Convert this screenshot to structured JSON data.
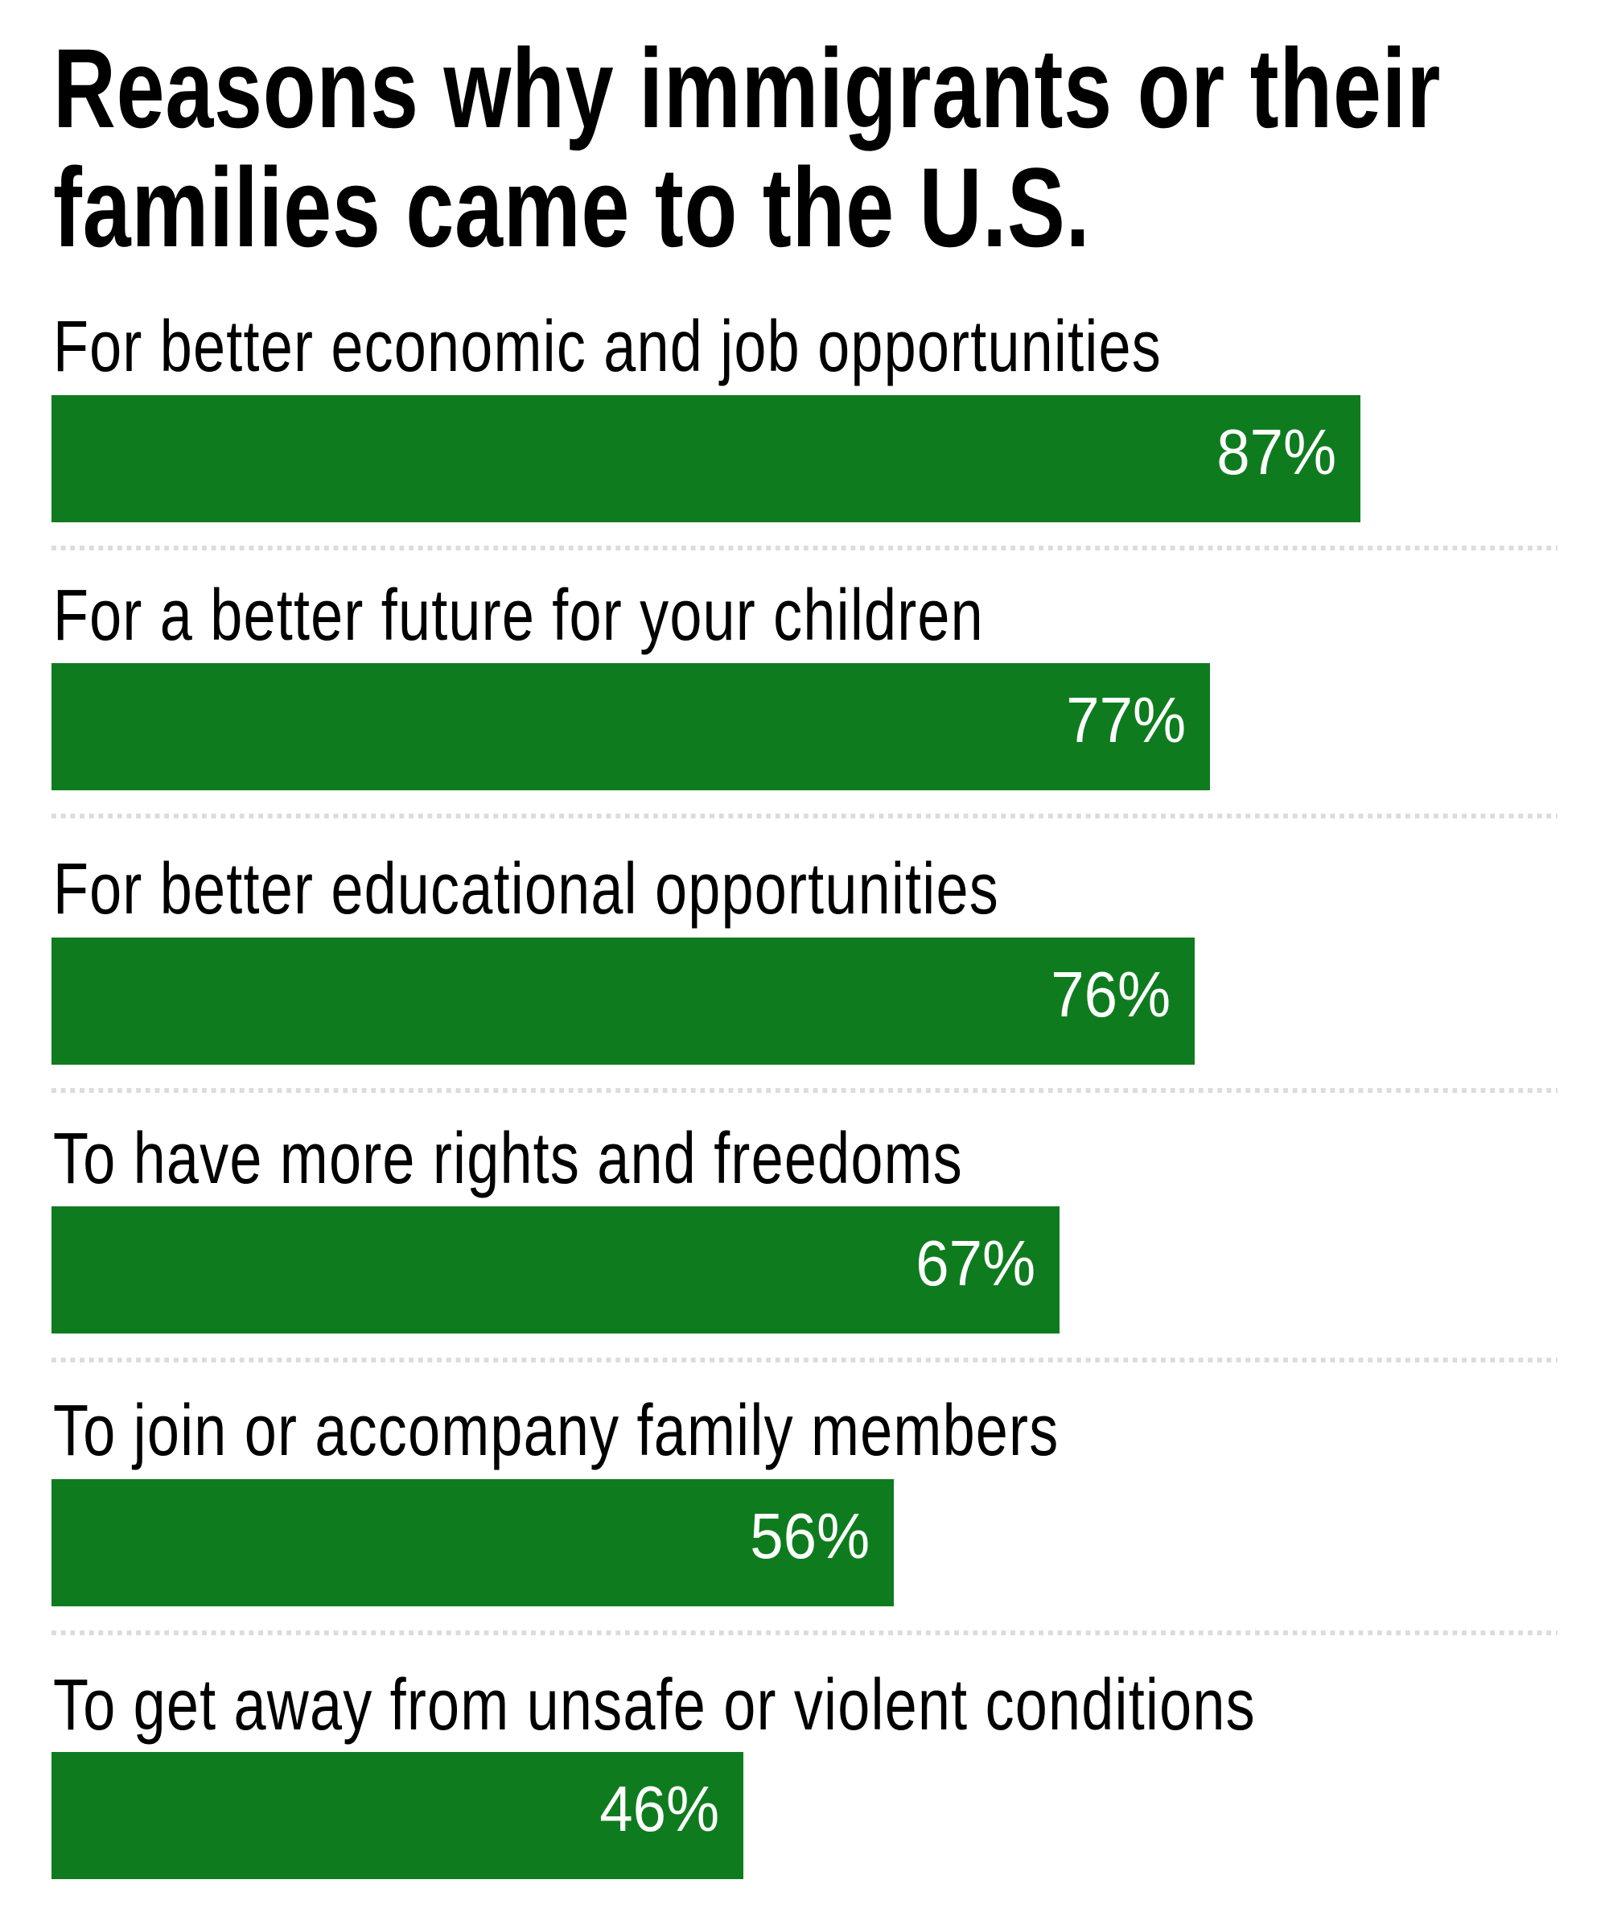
{
  "title": {
    "line1": "Reasons why immigrants or their",
    "line2": "families came to the U.S."
  },
  "colors": {
    "bar": "#0e7c1e",
    "value_text": "#ffffff",
    "separator": "#dcdcdc",
    "label_text": "#000000"
  },
  "rows": [
    {
      "label": "For better economic and job opportunities",
      "value": 87,
      "value_label": "87%"
    },
    {
      "label": "For a better future for your children",
      "value": 77,
      "value_label": "77%"
    },
    {
      "label": "For better educational opportunities",
      "value": 76,
      "value_label": "76%"
    },
    {
      "label": "To have more rights and freedoms",
      "value": 67,
      "value_label": "67%"
    },
    {
      "label": "To join or accompany family members",
      "value": 56,
      "value_label": "56%"
    },
    {
      "label": "To get away from unsafe or violent conditions",
      "value": 46,
      "value_label": "46%"
    }
  ],
  "chart_data": {
    "type": "bar",
    "orientation": "horizontal",
    "title": "Reasons why immigrants or their families came to the U.S.",
    "categories": [
      "For better economic and job opportunities",
      "For a better future for your children",
      "For better educational opportunities",
      "To have more rights and freedoms",
      "To join or accompany family members",
      "To get away from unsafe or violent conditions"
    ],
    "values": [
      87,
      77,
      76,
      67,
      56,
      46
    ],
    "value_labels": [
      "87%",
      "77%",
      "76%",
      "67%",
      "56%",
      "46%"
    ],
    "unit": "%",
    "xlabel": "",
    "ylabel": "",
    "xlim": [
      0,
      100
    ],
    "grid": false,
    "legend": null,
    "bar_color": "#0e7c1e"
  }
}
